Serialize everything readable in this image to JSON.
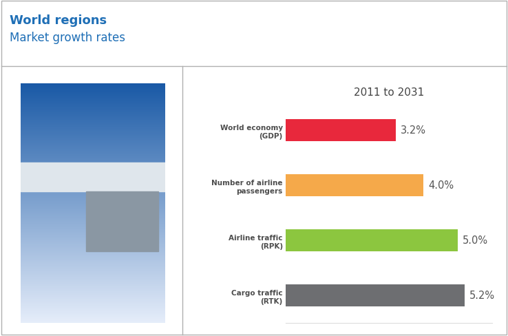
{
  "header": {
    "title": "World regions",
    "subtitle": "Market growth rates"
  },
  "chart_data": {
    "type": "bar",
    "orientation": "horizontal",
    "title": "2011 to 2031",
    "categories": [
      "World economy\n(GDP)",
      "Number of airline\npassengers",
      "Airline traffic\n(RPK)",
      "Cargo traffic\n(RTK)"
    ],
    "values": [
      3.2,
      4.0,
      5.0,
      5.2
    ],
    "value_labels": [
      "3.2%",
      "4.0%",
      "5.0%",
      "5.2%"
    ],
    "colors": [
      "#e8283c",
      "#f5a94a",
      "#8cc63f",
      "#6d6e71"
    ],
    "data_labels": true,
    "xlim": [
      0,
      6
    ],
    "xticks": [],
    "tick_labels": "y"
  }
}
